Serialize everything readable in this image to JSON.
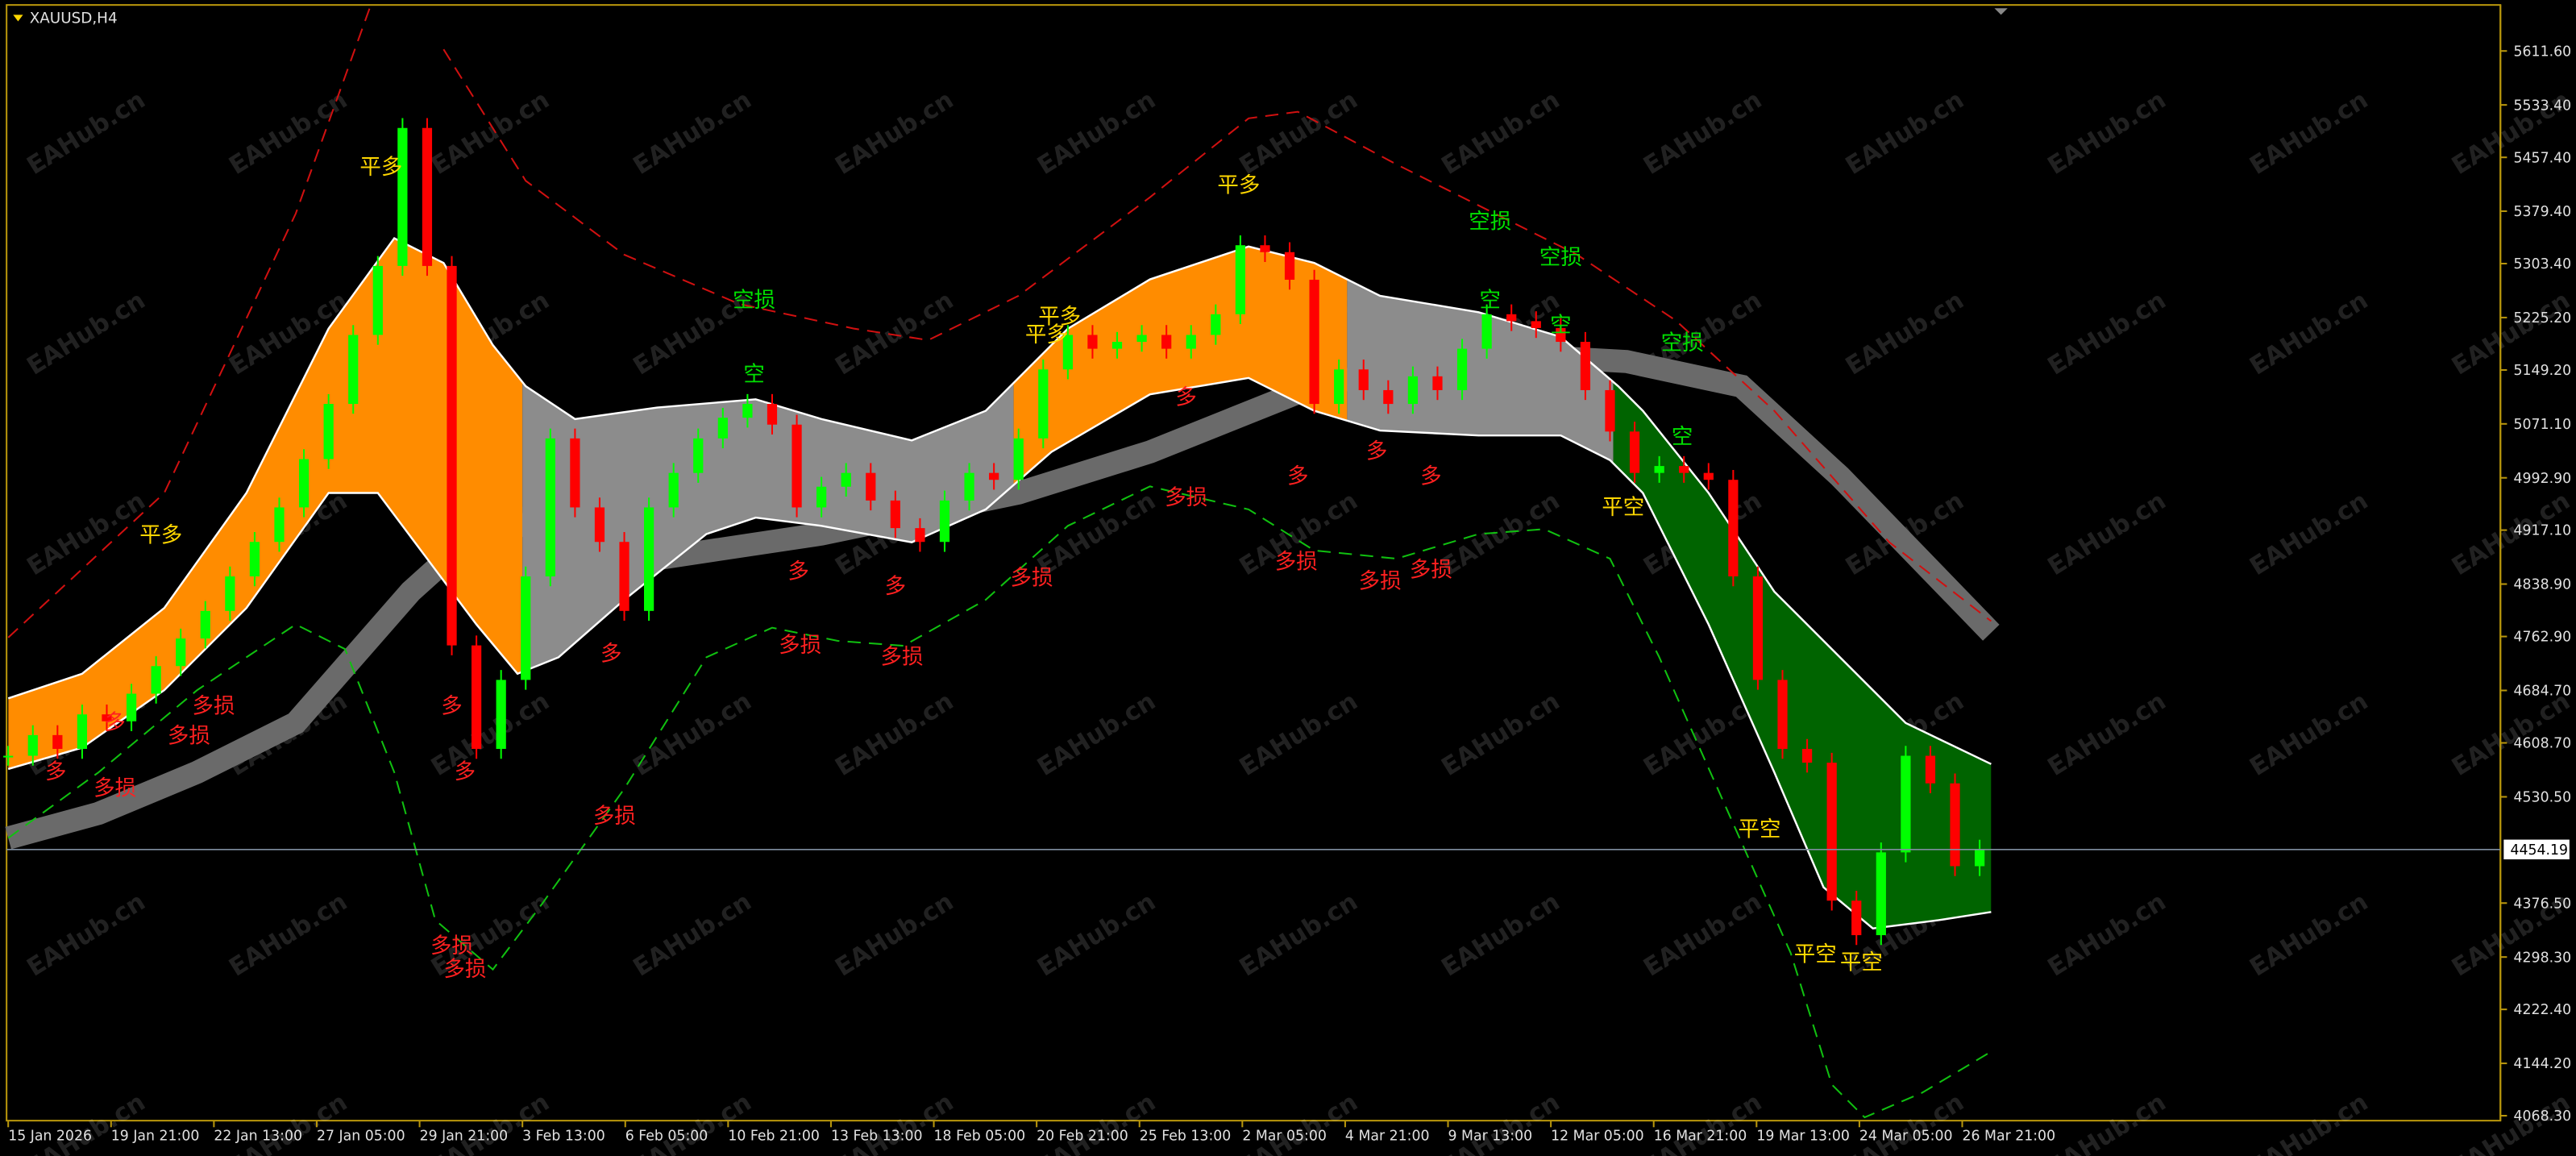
{
  "header": {
    "title": "XAUUSD,H4"
  },
  "watermark": "EAHub.cn",
  "price_axis": {
    "ticks": [
      {
        "value": 5611.6,
        "label": "5611.60"
      },
      {
        "value": 5533.4,
        "label": "5533.40"
      },
      {
        "value": 5457.4,
        "label": "5457.40"
      },
      {
        "value": 5379.4,
        "label": "5379.40"
      },
      {
        "value": 5303.4,
        "label": "5303.40"
      },
      {
        "value": 5225.2,
        "label": "5225.20"
      },
      {
        "value": 5149.2,
        "label": "5149.20"
      },
      {
        "value": 5071.1,
        "label": "5071.10"
      },
      {
        "value": 4992.9,
        "label": "4992.90"
      },
      {
        "value": 4917.1,
        "label": "4917.10"
      },
      {
        "value": 4838.9,
        "label": "4838.90"
      },
      {
        "value": 4762.9,
        "label": "4762.90"
      },
      {
        "value": 4684.7,
        "label": "4684.70"
      },
      {
        "value": 4608.7,
        "label": "4608.70"
      },
      {
        "value": 4530.5,
        "label": "4530.50"
      },
      {
        "value": 4376.5,
        "label": "4376.50"
      },
      {
        "value": 4298.3,
        "label": "4298.30"
      },
      {
        "value": 4222.4,
        "label": "4222.40"
      },
      {
        "value": 4144.2,
        "label": "4144.20"
      },
      {
        "value": 4068.3,
        "label": "4068.30"
      }
    ],
    "current": {
      "value": 4454.19,
      "label": "4454.19"
    }
  },
  "time_axis": {
    "labels": [
      "15 Jan 2026",
      "19 Jan 21:00",
      "22 Jan 13:00",
      "27 Jan 05:00",
      "29 Jan 21:00",
      "3 Feb 13:00",
      "6 Feb 05:00",
      "10 Feb 21:00",
      "13 Feb 13:00",
      "18 Feb 05:00",
      "20 Feb 21:00",
      "25 Feb 13:00",
      "2 Mar 05:00",
      "4 Mar 21:00",
      "9 Mar 13:00",
      "12 Mar 05:00",
      "16 Mar 21:00",
      "19 Mar 13:00",
      "24 Mar 05:00",
      "26 Mar 21:00"
    ]
  },
  "closes": [
    4590,
    4620,
    4600,
    4650,
    4640,
    4680,
    4720,
    4760,
    4800,
    4850,
    4900,
    4950,
    5020,
    5100,
    5200,
    5300,
    5500,
    5300,
    4750,
    4600,
    4700,
    4850,
    5050,
    4950,
    4900,
    4800,
    4950,
    5000,
    5050,
    5080,
    5100,
    5070,
    4950,
    4980,
    5000,
    4960,
    4920,
    4900,
    4960,
    5000,
    4990,
    5050,
    5150,
    5200,
    5180,
    5190,
    5200,
    5180,
    5200,
    5230,
    5330,
    5320,
    5280,
    5100,
    5150,
    5120,
    5100,
    5140,
    5120,
    5180,
    5230,
    5220,
    5210,
    5190,
    5120,
    5060,
    5000,
    5010,
    5000,
    4990,
    4850,
    4700,
    4600,
    4580,
    4380,
    4330,
    4450,
    4590,
    4550,
    4430,
    4454
  ],
  "annotations": [
    {
      "text": "平多",
      "color": "#ffd700"
    },
    {
      "text": "平多",
      "color": "#ffd700"
    },
    {
      "text": "平多",
      "color": "#ffd700"
    },
    {
      "text": "平多",
      "color": "#ffd700"
    },
    {
      "text": "平多",
      "color": "#ffd700"
    },
    {
      "text": "空损",
      "color": "#00e000"
    },
    {
      "text": "空损",
      "color": "#00e000"
    },
    {
      "text": "空损",
      "color": "#00e000"
    },
    {
      "text": "空损",
      "color": "#00e000"
    },
    {
      "text": "空",
      "color": "#00e000"
    },
    {
      "text": "空",
      "color": "#00e000"
    },
    {
      "text": "空",
      "color": "#00e000"
    },
    {
      "text": "空",
      "color": "#00e000"
    },
    {
      "text": "平空",
      "color": "#ffd700"
    },
    {
      "text": "平空",
      "color": "#ffd700"
    },
    {
      "text": "平空",
      "color": "#ffd700"
    },
    {
      "text": "平空",
      "color": "#ffd700"
    },
    {
      "text": "多",
      "color": "#ff2020"
    },
    {
      "text": "多",
      "color": "#ff2020"
    },
    {
      "text": "多",
      "color": "#ff2020"
    },
    {
      "text": "多",
      "color": "#ff2020"
    },
    {
      "text": "多",
      "color": "#ff2020"
    },
    {
      "text": "多",
      "color": "#ff2020"
    },
    {
      "text": "多",
      "color": "#ff2020"
    },
    {
      "text": "多",
      "color": "#ff2020"
    },
    {
      "text": "多",
      "color": "#ff2020"
    },
    {
      "text": "多",
      "color": "#ff2020"
    },
    {
      "text": "多",
      "color": "#ff2020"
    },
    {
      "text": "多损",
      "color": "#ff2020"
    },
    {
      "text": "多损",
      "color": "#ff2020"
    },
    {
      "text": "多损",
      "color": "#ff2020"
    },
    {
      "text": "多损",
      "color": "#ff2020"
    },
    {
      "text": "多损",
      "color": "#ff2020"
    },
    {
      "text": "多损",
      "color": "#ff2020"
    },
    {
      "text": "多损",
      "color": "#ff2020"
    },
    {
      "text": "多损",
      "color": "#ff2020"
    },
    {
      "text": "多损",
      "color": "#ff2020"
    },
    {
      "text": "多损",
      "color": "#ff2020"
    },
    {
      "text": "多损",
      "color": "#ff2020"
    },
    {
      "text": "多损",
      "color": "#ff2020"
    },
    {
      "text": "多损",
      "color": "#ff2020"
    }
  ]
}
